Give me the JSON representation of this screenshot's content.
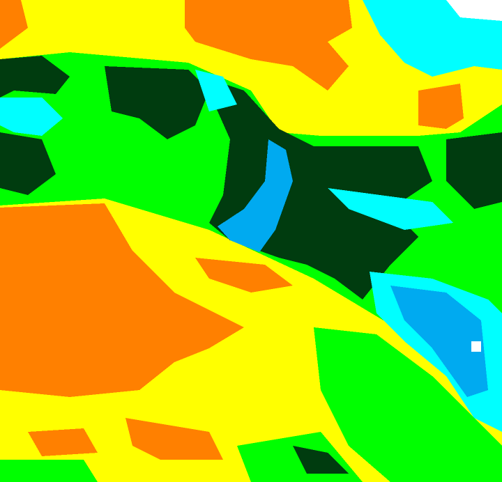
{
  "map": {
    "type": "classified-raster",
    "palette": {
      "orange": "#ff8000",
      "yellow": "#ffff00",
      "green": "#00ff00",
      "dark_green": "#003c0f",
      "cyan": "#00ffff",
      "blue": "#00aaf0",
      "white": "#ffffff"
    }
  }
}
